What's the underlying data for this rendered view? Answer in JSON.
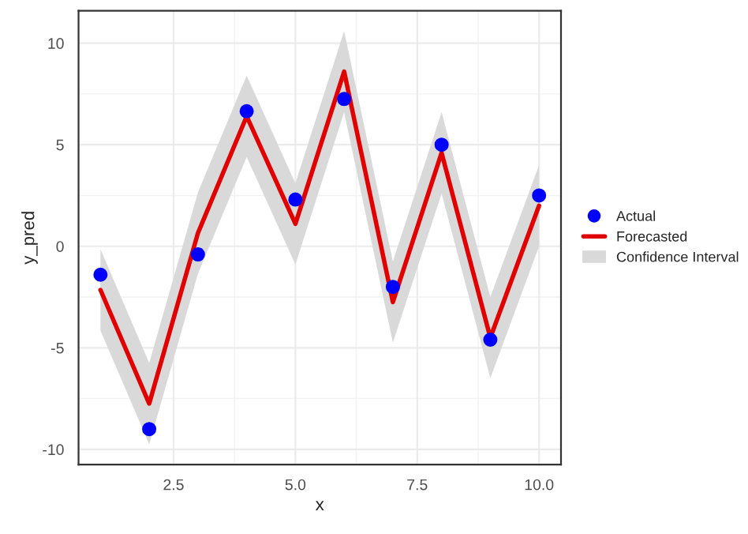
{
  "chart_data": {
    "type": "line",
    "xlabel": "x",
    "ylabel": "y_pred",
    "x": [
      1,
      2,
      3,
      4,
      5,
      6,
      7,
      8,
      9,
      10
    ],
    "series": [
      {
        "name": "Confidence Interval",
        "type": "area",
        "color": "#d9d9d9",
        "values": [
          null,
          null,
          null,
          null,
          null,
          null,
          null,
          null,
          null,
          null
        ],
        "lower": [
          -4.15,
          -9.75,
          -1.35,
          4.4,
          -0.9,
          6.6,
          -4.75,
          2.6,
          -6.5,
          0.0
        ],
        "upper": [
          -0.15,
          -5.75,
          2.65,
          8.4,
          3.1,
          10.6,
          -0.75,
          6.6,
          -2.5,
          4.0
        ]
      },
      {
        "name": "Actual",
        "type": "scatter",
        "color": "#0000ff",
        "values": [
          -1.4,
          -9.0,
          -0.4,
          6.65,
          2.3,
          7.25,
          -2.0,
          5.0,
          -4.6,
          2.5
        ]
      },
      {
        "name": "Forecasted",
        "color": "#e00000",
        "values": [
          -2.15,
          -7.75,
          0.65,
          6.4,
          1.1,
          8.6,
          -2.75,
          4.6,
          -4.5,
          2.0
        ]
      }
    ],
    "xlim": [
      0.55,
      10.45
    ],
    "ylim": [
      -10.75,
      11.6
    ],
    "xticks": [
      {
        "value": 2.5,
        "label": "2.5"
      },
      {
        "value": 5,
        "label": "5.0"
      },
      {
        "value": 7.5,
        "label": "7.5"
      },
      {
        "value": 10,
        "label": "10.0"
      }
    ],
    "yticks": [
      -10,
      -5,
      0,
      5,
      10
    ],
    "grid": true,
    "legend": "right"
  }
}
